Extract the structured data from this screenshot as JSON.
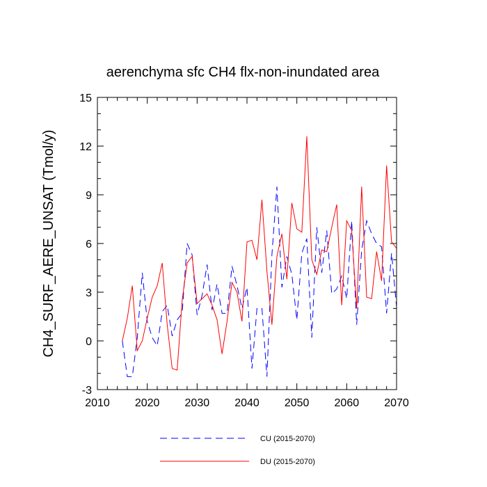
{
  "chart_data": {
    "type": "line",
    "title": "aerenchyma sfc CH4 flx-non-inundated area",
    "xlabel": "",
    "ylabel": "CH4_SURF_AERE_UNSAT  (Tmol/y)",
    "xlim": [
      2010,
      2070
    ],
    "ylim": [
      -3,
      15
    ],
    "x_ticks": [
      2010,
      2020,
      2030,
      2040,
      2050,
      2060,
      2070
    ],
    "y_ticks": [
      -3,
      0,
      3,
      6,
      9,
      12,
      15
    ],
    "x_ticks_minor": [
      2012,
      2014,
      2016,
      2018,
      2022,
      2024,
      2026,
      2028,
      2032,
      2034,
      2036,
      2038,
      2042,
      2044,
      2046,
      2048,
      2052,
      2054,
      2056,
      2058,
      2062,
      2064,
      2066,
      2068
    ],
    "y_ticks_minor": [
      -2,
      -1,
      1,
      2,
      4,
      5,
      7,
      8,
      10,
      11,
      13,
      14
    ],
    "grid": false,
    "legend_position": "bottom",
    "series": [
      {
        "name": "CU (2015-2070)",
        "color": "#0000ff",
        "dash": "dashed",
        "x": [
          2015,
          2016,
          2017,
          2018,
          2019,
          2020,
          2021,
          2022,
          2023,
          2024,
          2025,
          2026,
          2027,
          2028,
          2029,
          2030,
          2031,
          2032,
          2033,
          2034,
          2035,
          2036,
          2037,
          2038,
          2039,
          2040,
          2041,
          2042,
          2043,
          2044,
          2045,
          2046,
          2047,
          2048,
          2049,
          2050,
          2051,
          2052,
          2053,
          2054,
          2055,
          2056,
          2057,
          2058,
          2059,
          2060,
          2061,
          2062,
          2063,
          2064,
          2065,
          2066,
          2067,
          2068,
          2069,
          2070
        ],
        "values": [
          0.0,
          -2.2,
          -2.2,
          0.2,
          4.2,
          1.2,
          0.2,
          -0.3,
          1.8,
          2.2,
          0.3,
          1.3,
          1.7,
          6.0,
          5.3,
          1.6,
          2.8,
          4.7,
          1.9,
          3.5,
          1.7,
          1.7,
          4.6,
          3.4,
          2.0,
          3.3,
          -1.7,
          2.0,
          2.0,
          -2.2,
          5.3,
          9.5,
          3.3,
          5.2,
          4.1,
          1.3,
          5.4,
          6.3,
          0.2,
          7.0,
          4.2,
          6.8,
          2.9,
          3.2,
          4.0,
          2.6,
          7.4,
          1.0,
          5.6,
          7.4,
          6.6,
          6.0,
          5.8,
          1.7,
          5.4,
          2.1
        ]
      },
      {
        "name": "DU (2015-2070)",
        "color": "#ff0000",
        "dash": "solid",
        "x": [
          2015,
          2016,
          2017,
          2018,
          2019,
          2020,
          2021,
          2022,
          2023,
          2024,
          2025,
          2026,
          2027,
          2028,
          2029,
          2030,
          2031,
          2032,
          2033,
          2034,
          2035,
          2036,
          2037,
          2038,
          2039,
          2040,
          2041,
          2042,
          2043,
          2044,
          2045,
          2046,
          2047,
          2048,
          2049,
          2050,
          2051,
          2052,
          2053,
          2054,
          2055,
          2056,
          2057,
          2058,
          2059,
          2060,
          2061,
          2062,
          2063,
          2064,
          2065,
          2066,
          2067,
          2068,
          2069,
          2070
        ],
        "values": [
          0.0,
          1.4,
          3.4,
          -0.6,
          0.0,
          1.4,
          2.7,
          3.4,
          4.8,
          1.0,
          -1.7,
          -1.8,
          2.5,
          4.8,
          5.2,
          2.3,
          2.6,
          2.9,
          2.2,
          1.3,
          -0.8,
          1.2,
          3.6,
          3.0,
          1.2,
          6.1,
          6.2,
          5.0,
          8.7,
          4.3,
          1.0,
          5.2,
          6.6,
          3.8,
          8.5,
          6.9,
          6.7,
          12.6,
          5.0,
          4.1,
          5.6,
          5.5,
          7.0,
          8.4,
          2.2,
          7.4,
          6.8,
          2.0,
          9.5,
          2.7,
          2.6,
          5.5,
          3.7,
          10.8,
          6.1,
          5.7
        ]
      }
    ]
  }
}
